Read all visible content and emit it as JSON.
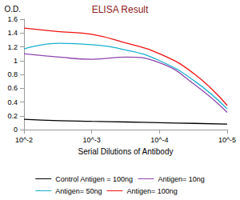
{
  "chart_data": {
    "type": "line",
    "title": "ELISA Result",
    "ylabel": "O.D.",
    "xlabel": "Serial Dilutions of Antibody",
    "x": [
      0.01,
      0.003,
      0.001,
      0.0003,
      0.0001,
      3e-05,
      1e-05
    ],
    "xlim": [
      0.01,
      1e-05
    ],
    "xticks": [
      {
        "value": 0.01,
        "label": "10^-2"
      },
      {
        "value": 0.001,
        "label": "10^-3"
      },
      {
        "value": 0.0001,
        "label": "10^-4"
      },
      {
        "value": 1e-05,
        "label": "10^-5"
      }
    ],
    "log": "x",
    "ylim": [
      0,
      1.6
    ],
    "yticks": [
      0,
      0.2,
      0.4,
      0.6,
      0.8,
      1,
      1.2,
      1.4,
      1.6
    ],
    "grid": false,
    "legend": "bottom",
    "marker": "none",
    "series": [
      {
        "name": "Control Antigen = 100ng",
        "color": "#000000",
        "values": [
          0.15,
          0.13,
          0.12,
          0.11,
          0.1,
          0.09,
          0.08
        ]
      },
      {
        "name": "Antigen= 10ng",
        "color": "#8e44ad",
        "values": [
          1.1,
          1.05,
          1.02,
          1.05,
          0.97,
          0.65,
          0.25
        ]
      },
      {
        "name": "Antigen= 50ng",
        "color": "#1ab0d0",
        "values": [
          1.17,
          1.25,
          1.23,
          1.15,
          1.0,
          0.7,
          0.3
        ]
      },
      {
        "name": "Antigen= 100ng",
        "color": "#ee1111",
        "values": [
          1.47,
          1.42,
          1.38,
          1.25,
          1.1,
          0.8,
          0.35
        ]
      }
    ]
  }
}
